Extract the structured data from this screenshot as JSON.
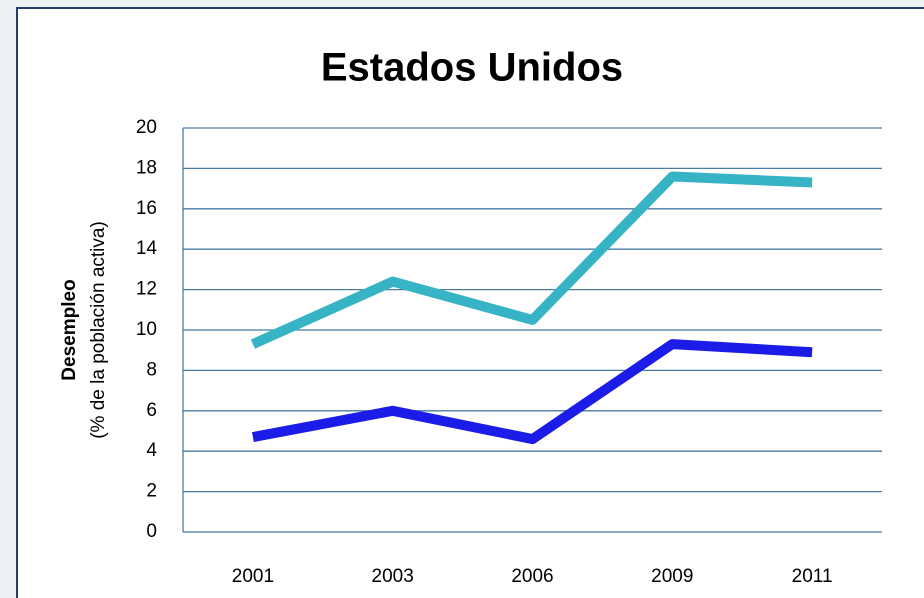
{
  "chart_data": {
    "type": "line",
    "title": "Estados Unidos",
    "ylabel": [
      "Desempleo",
      "(% de la población activa)"
    ],
    "categories": [
      "2001",
      "2003",
      "2006",
      "2009",
      "2011"
    ],
    "series": [
      {
        "color": "#36b4c6",
        "values": [
          9.3,
          12.4,
          10.5,
          17.6,
          17.3
        ]
      },
      {
        "color": "#1c1ce8",
        "values": [
          4.7,
          6.0,
          4.6,
          9.3,
          8.9
        ]
      }
    ],
    "ylim": [
      0,
      20
    ],
    "yticks": [
      0,
      2,
      4,
      6,
      8,
      10,
      12,
      14,
      16,
      18,
      20
    ],
    "grid": true
  }
}
